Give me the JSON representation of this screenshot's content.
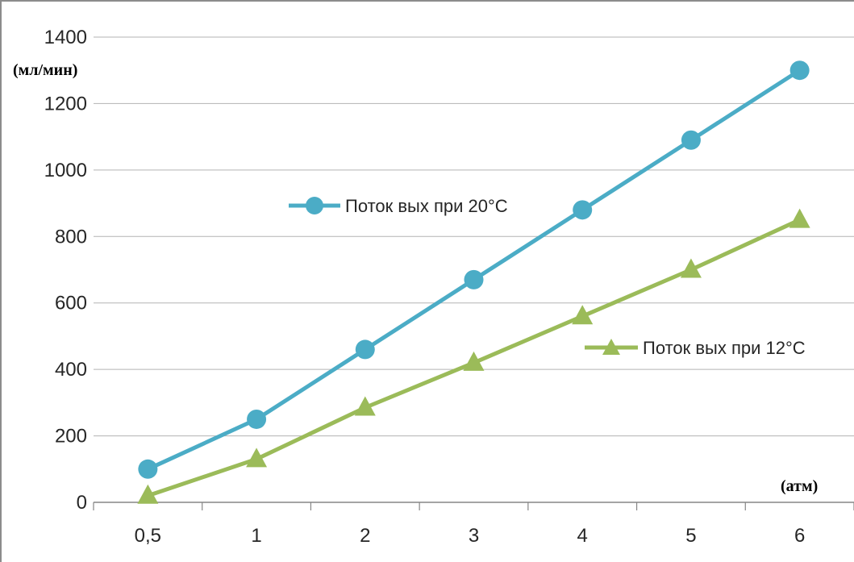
{
  "chart_data": {
    "type": "line",
    "title": "",
    "ylabel": "(мл/мин)",
    "xlabel": "(атм)",
    "categories": [
      "0,5",
      "1",
      "2",
      "3",
      "4",
      "5",
      "6"
    ],
    "ylim": [
      0,
      1400
    ],
    "yticks": [
      0,
      200,
      400,
      600,
      800,
      1000,
      1200,
      1400
    ],
    "grid": true,
    "series": [
      {
        "name": "Поток вых при 20°С",
        "values": [
          100,
          250,
          460,
          670,
          880,
          1090,
          1300
        ],
        "color": "#4bacc6",
        "marker": "circle"
      },
      {
        "name": "Поток вых при 12°С",
        "values": [
          20,
          130,
          285,
          420,
          560,
          700,
          850
        ],
        "color": "#9bbb59",
        "marker": "triangle"
      }
    ]
  }
}
